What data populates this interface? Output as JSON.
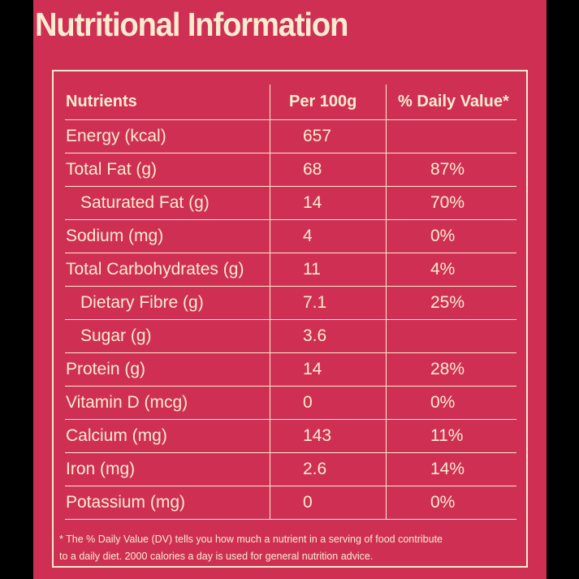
{
  "title": "Nutritional Information",
  "colors": {
    "background": "#cf2f53",
    "text": "#f9ecd0",
    "outer": "#000000"
  },
  "table": {
    "headers": {
      "nutrient": "Nutrients",
      "per100g": "Per 100g",
      "daily_value": "% Daily Value*"
    },
    "rows": [
      {
        "nutrient": "Energy (kcal)",
        "per100g": "657",
        "daily_value": ""
      },
      {
        "nutrient": "Total Fat (g)",
        "per100g": "68",
        "daily_value": "87%"
      },
      {
        "nutrient": "Saturated Fat (g)",
        "per100g": "14",
        "daily_value": "70%"
      },
      {
        "nutrient": "Sodium (mg)",
        "per100g": "4",
        "daily_value": "0%"
      },
      {
        "nutrient": "Total Carbohydrates (g)",
        "per100g": "11",
        "daily_value": "4%"
      },
      {
        "nutrient": "Dietary Fibre (g)",
        "per100g": "7.1",
        "daily_value": "25%"
      },
      {
        "nutrient": "Sugar (g)",
        "per100g": "3.6",
        "daily_value": ""
      },
      {
        "nutrient": "Protein (g)",
        "per100g": "14",
        "daily_value": "28%"
      },
      {
        "nutrient": "Vitamin D (mcg)",
        "per100g": "0",
        "daily_value": "0%"
      },
      {
        "nutrient": "Calcium (mg)",
        "per100g": "143",
        "daily_value": "11%"
      },
      {
        "nutrient": "Iron (mg)",
        "per100g": "2.6",
        "daily_value": "14%"
      },
      {
        "nutrient": "Potassium (mg)",
        "per100g": "0",
        "daily_value": "0%"
      }
    ]
  },
  "footnote": {
    "line1": "* The % Daily Value (DV) tells you how much a nutrient in a serving of food contribute",
    "line2": "to a daily diet. 2000 calories a day is used for general nutrition advice."
  }
}
